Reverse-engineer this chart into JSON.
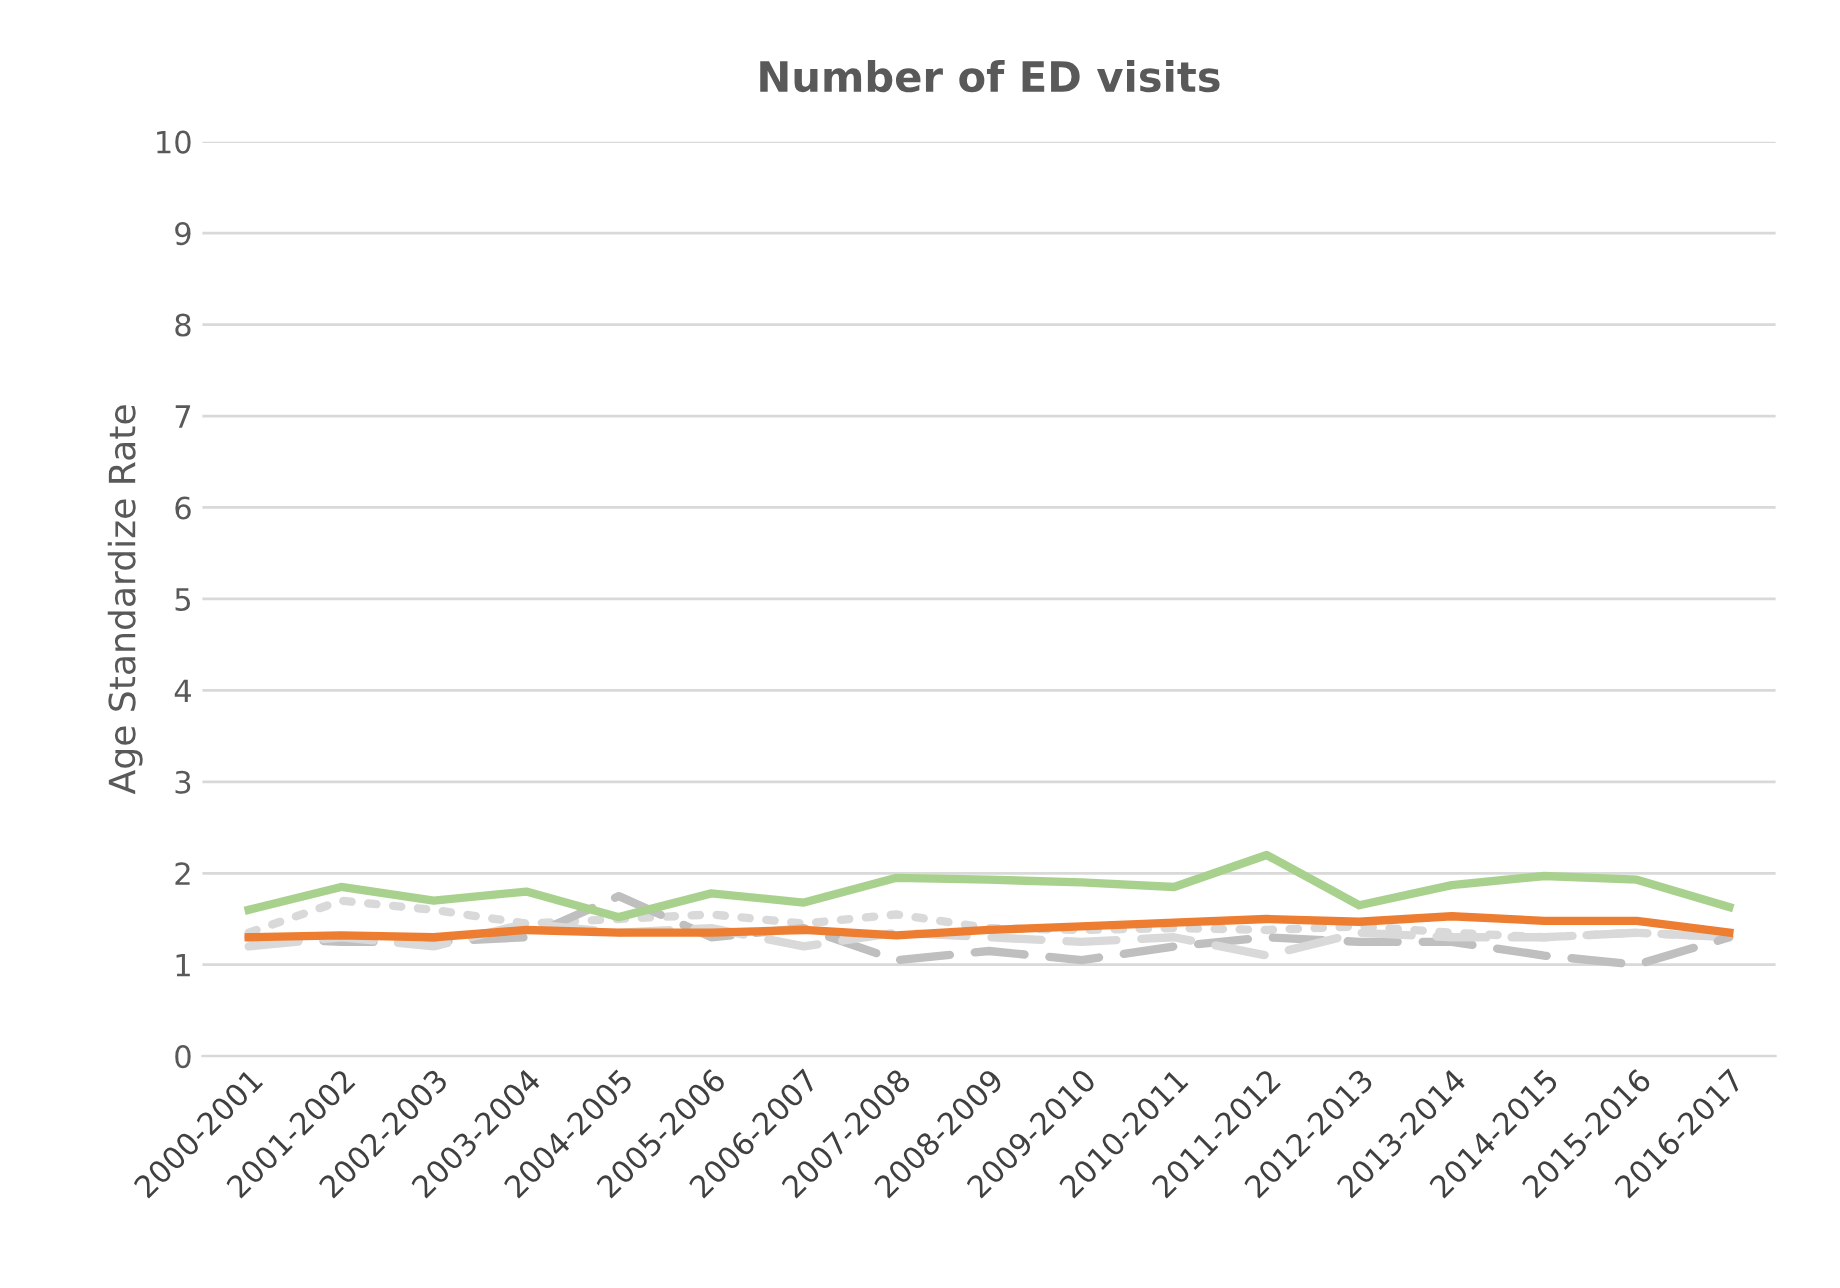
{
  "chart_data": {
    "type": "line",
    "title": "Number of ED visits",
    "ylabel": "Age Standardize Rate",
    "categories": [
      "2000-2001",
      "2001-2002",
      "2002-2003",
      "2003-2004",
      "2004-2005",
      "2005-2006",
      "2006-2007",
      "2007-2008",
      "2008-2009",
      "2009-2010",
      "2010-2011",
      "2011-2012",
      "2012-2013",
      "2013-2014",
      "2014-2015",
      "2015-2016",
      "2016-2017"
    ],
    "series": [
      {
        "color": "#d9d9d9",
        "line_style": "dotted",
        "values": [
          1.35,
          1.7,
          1.6,
          1.45,
          1.5,
          1.55,
          1.45,
          1.55,
          1.4,
          1.38,
          1.4,
          1.38,
          1.42,
          1.35,
          1.3,
          1.35,
          1.3
        ]
      },
      {
        "color": "#bfbfbf",
        "line_style": "dashed",
        "values": [
          1.3,
          1.25,
          1.25,
          1.3,
          1.75,
          1.3,
          1.4,
          1.05,
          1.15,
          1.05,
          1.2,
          1.3,
          1.25,
          1.25,
          1.1,
          1.0,
          1.3
        ]
      },
      {
        "color": "#d9d9d9",
        "line_style": "dashed",
        "values": [
          1.2,
          1.3,
          1.2,
          1.45,
          1.35,
          1.4,
          1.2,
          1.35,
          1.3,
          1.25,
          1.3,
          1.1,
          1.35,
          1.3,
          1.3,
          1.35,
          1.3
        ]
      },
      {
        "color": "#ed7d31",
        "line_style": "solid",
        "values": [
          1.3,
          1.32,
          1.3,
          1.38,
          1.35,
          1.35,
          1.38,
          1.32,
          1.38,
          1.42,
          1.46,
          1.5,
          1.47,
          1.53,
          1.48,
          1.48,
          1.35
        ]
      },
      {
        "color": "#a9d18e",
        "line_style": "solid",
        "values": [
          1.6,
          1.85,
          1.7,
          1.8,
          1.52,
          1.78,
          1.68,
          1.95,
          1.93,
          1.9,
          1.85,
          2.2,
          1.65,
          1.87,
          1.97,
          1.93,
          1.63
        ]
      }
    ],
    "ylim": [
      0,
      10
    ],
    "yticks": [
      0,
      1,
      2,
      3,
      4,
      5,
      6,
      7,
      8,
      9,
      10
    ],
    "grid": "y",
    "marker": "none"
  }
}
